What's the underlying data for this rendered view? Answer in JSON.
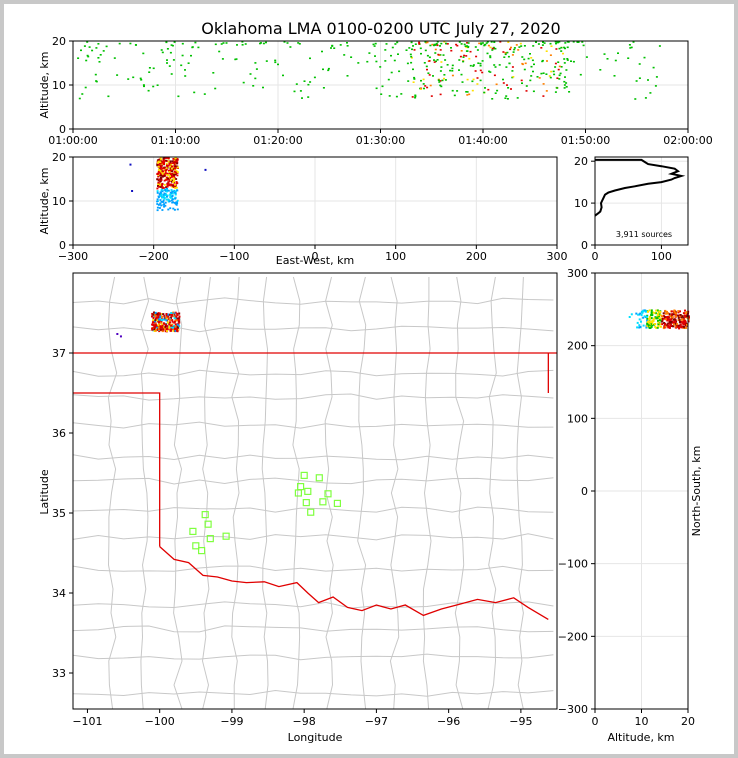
{
  "figure": {
    "title": "Oklahoma LMA 0100-0200 UTC July 27, 2020"
  },
  "colors": {
    "state_border": "#e00000",
    "county_lines": "#c8c8c8",
    "station": "#7fff3f",
    "grid": "#e6e6e6",
    "density_scale": [
      "#00a0ff",
      "#00e0ff",
      "#00c000",
      "#ffe000",
      "#ff8000",
      "#e00000",
      "#800000"
    ]
  },
  "chart_data": [
    {
      "id": "time-height",
      "type": "heatmap",
      "ylabel": "Altitude, km",
      "xlim": [
        "01:00:00",
        "02:00:00"
      ],
      "ylim": [
        0,
        20
      ],
      "xticks": [
        "01:00:00",
        "01:10:00",
        "01:20:00",
        "01:30:00",
        "01:40:00",
        "01:50:00",
        "02:00:00"
      ],
      "yticks": [
        "0",
        "10",
        "20"
      ],
      "grid": true,
      "sources": "sparse sources 01:00–02:00 UTC, mostly 12–20 km, densest 01:33–01:48"
    },
    {
      "id": "ew-altitude",
      "type": "heatmap",
      "xlabel": "East-West, km",
      "ylabel": "Altitude, km",
      "xlim": [
        -300,
        300
      ],
      "ylim": [
        0,
        20
      ],
      "xticks": [
        "−300",
        "−200",
        "−100",
        "0",
        "100",
        "200",
        "300"
      ],
      "yticks": [
        "0",
        "10",
        "20"
      ],
      "grid": true,
      "sources": "cluster centered near East-West −190 km, 7–20 km altitude"
    },
    {
      "id": "altitude-histogram",
      "type": "line",
      "xlim": [
        0,
        140
      ],
      "ylim": [
        0,
        21
      ],
      "xticks": [
        "0",
        "100"
      ],
      "yticks": [
        "0",
        "10",
        "20"
      ],
      "annotation": "3,911 sources",
      "x": [
        0,
        5,
        8,
        10,
        9,
        12,
        15,
        20,
        30,
        45,
        60,
        80,
        100,
        115,
        120,
        130,
        115,
        125,
        120,
        100,
        80,
        75,
        70,
        0
      ],
      "y": [
        7,
        7.6,
        8,
        9,
        10,
        11,
        12,
        12.5,
        13,
        13.6,
        14,
        14.6,
        15,
        15.6,
        16,
        16.5,
        17,
        17.6,
        18.2,
        18.8,
        19.3,
        19.8,
        20.3,
        20.3
      ]
    },
    {
      "id": "plan-view",
      "type": "map",
      "xlabel": "Longitude",
      "ylabel": "Latitude",
      "xlim": [
        -101.2,
        -94.5
      ],
      "ylim": [
        32.55,
        38.0
      ],
      "xticks": [
        "−101",
        "−100",
        "−99",
        "−98",
        "−97",
        "−96",
        "−95"
      ],
      "yticks": [
        "33",
        "34",
        "35",
        "36",
        "37"
      ],
      "stations": [
        {
          "lon": -98.0,
          "lat": 35.47
        },
        {
          "lon": -97.79,
          "lat": 35.44
        },
        {
          "lon": -98.05,
          "lat": 35.33
        },
        {
          "lon": -97.95,
          "lat": 35.27
        },
        {
          "lon": -98.08,
          "lat": 35.25
        },
        {
          "lon": -97.67,
          "lat": 35.24
        },
        {
          "lon": -97.97,
          "lat": 35.13
        },
        {
          "lon": -97.74,
          "lat": 35.14
        },
        {
          "lon": -97.54,
          "lat": 35.12
        },
        {
          "lon": -97.91,
          "lat": 35.01
        },
        {
          "lon": -99.37,
          "lat": 34.98
        },
        {
          "lon": -99.33,
          "lat": 34.86
        },
        {
          "lon": -99.54,
          "lat": 34.77
        },
        {
          "lon": -99.3,
          "lat": 34.68
        },
        {
          "lon": -99.08,
          "lat": 34.71
        },
        {
          "lon": -99.5,
          "lat": 34.59
        },
        {
          "lon": -99.42,
          "lat": 34.53
        }
      ],
      "sources": "cluster near −100.1 to −99.8 longitude, 37.3–37.5 latitude"
    },
    {
      "id": "ns-altitude",
      "type": "heatmap",
      "xlabel": "Altitude, km",
      "ylabel": "North-South, km",
      "xlim": [
        0,
        20
      ],
      "ylim": [
        -300,
        300
      ],
      "xticks": [
        "0",
        "10",
        "20"
      ],
      "yticks": [
        "300",
        "200",
        "100",
        "0",
        "−100",
        "−200",
        "−300"
      ],
      "grid": true,
      "sources": "cluster at North-South 225–250 km, altitudes 7–20 km"
    }
  ]
}
